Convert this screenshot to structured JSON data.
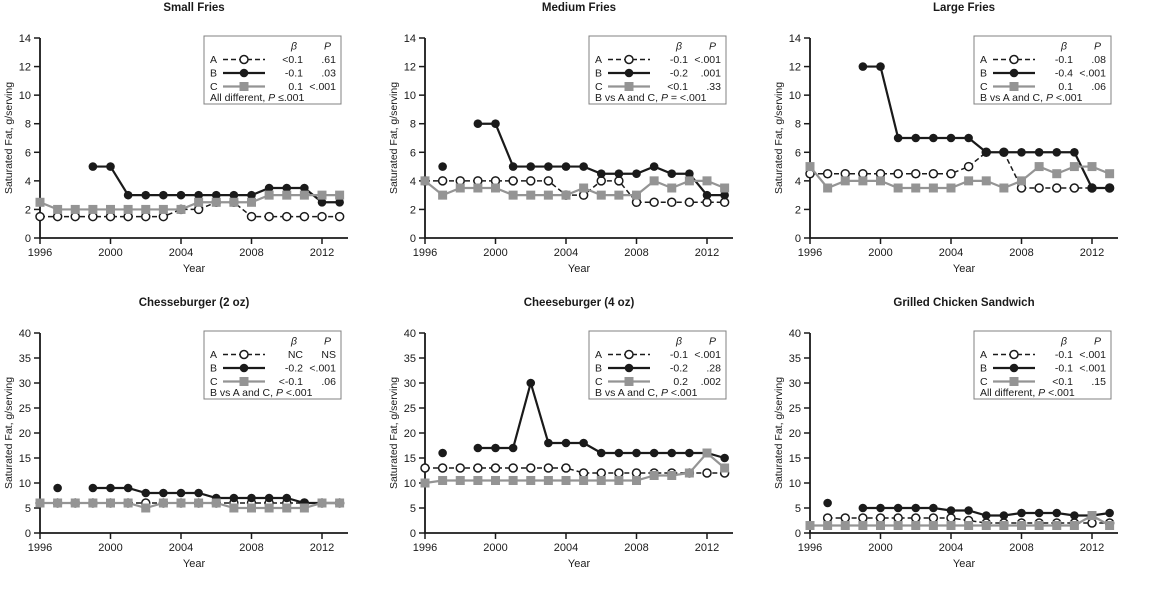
{
  "figure": {
    "xlabel": "Year",
    "ylabel": "Saturated Fat, g/serving",
    "xticks": [
      1996,
      2000,
      2004,
      2008,
      2012
    ],
    "xrange": [
      1996,
      2013.5
    ],
    "colors": {
      "black": "#1a1a1a",
      "gray": "#949494",
      "legend_border": "#808080",
      "background": "#ffffff"
    }
  },
  "chart_data": [
    {
      "type": "line",
      "title": "Small Fries",
      "xlabel": "Year",
      "ylabel": "Saturated Fat, g/serving",
      "ylim": [
        0,
        14
      ],
      "ystep": 2,
      "legend": {
        "col_beta": "β",
        "col_p": "P",
        "rows": [
          {
            "name": "A",
            "beta": "<0.1",
            "p": ".61"
          },
          {
            "name": "B",
            "beta": "-0.1",
            "p": ".03"
          },
          {
            "name": "C",
            "beta": "0.1",
            "p": "<.001"
          }
        ],
        "note": "All different, P ≤.001"
      },
      "series": [
        {
          "name": "A",
          "style": "dashed-open-circle",
          "x": [
            1996,
            1997,
            1998,
            1999,
            2000,
            2001,
            2002,
            2003,
            2004,
            2005,
            2006,
            2007,
            2008,
            2009,
            2010,
            2011,
            2012,
            2013
          ],
          "y": [
            1.5,
            1.5,
            1.5,
            1.5,
            1.5,
            1.5,
            1.5,
            1.5,
            2,
            2,
            2.5,
            2.5,
            1.5,
            1.5,
            1.5,
            1.5,
            1.5,
            1.5
          ]
        },
        {
          "name": "B",
          "style": "solid-filled-circle",
          "x": [
            1999,
            2000,
            2001,
            2002,
            2003,
            2004,
            2005,
            2006,
            2007,
            2008,
            2009,
            2010,
            2011,
            2012,
            2013
          ],
          "y": [
            5,
            5,
            3,
            3,
            3,
            3,
            3,
            3,
            3,
            3,
            3.5,
            3.5,
            3.5,
            2.5,
            2.5
          ]
        },
        {
          "name": "C",
          "style": "solid-gray-square",
          "x": [
            1996,
            1997,
            1998,
            1999,
            2000,
            2001,
            2002,
            2003,
            2004,
            2005,
            2006,
            2007,
            2008,
            2009,
            2010,
            2011,
            2012,
            2013
          ],
          "y": [
            2.5,
            2,
            2,
            2,
            2,
            2,
            2,
            2,
            2,
            2.5,
            2.5,
            2.5,
            2.5,
            3,
            3,
            3,
            3,
            3
          ]
        }
      ]
    },
    {
      "type": "line",
      "title": "Medium Fries",
      "xlabel": "Year",
      "ylabel": "Saturated Fat, g/serving",
      "ylim": [
        0,
        14
      ],
      "ystep": 2,
      "legend": {
        "col_beta": "β",
        "col_p": "P",
        "rows": [
          {
            "name": "A",
            "beta": "-0.1",
            "p": "<.001"
          },
          {
            "name": "B",
            "beta": "-0.2",
            "p": ".001"
          },
          {
            "name": "C",
            "beta": "<0.1",
            "p": ".33"
          }
        ],
        "note": "B vs A and C, P = <.001"
      },
      "series": [
        {
          "name": "A",
          "style": "dashed-open-circle",
          "x": [
            1996,
            1997,
            1998,
            1999,
            2000,
            2001,
            2002,
            2003,
            2004,
            2005,
            2006,
            2007,
            2008,
            2009,
            2010,
            2011,
            2012,
            2013
          ],
          "y": [
            4,
            4,
            4,
            4,
            4,
            4,
            4,
            4,
            3,
            3,
            4,
            4,
            2.5,
            2.5,
            2.5,
            2.5,
            2.5,
            2.5
          ]
        },
        {
          "name": "B",
          "style": "solid-filled-circle",
          "x": [
            1997,
            1999,
            2000,
            2001,
            2002,
            2003,
            2004,
            2005,
            2006,
            2007,
            2008,
            2009,
            2010,
            2011,
            2012,
            2013
          ],
          "y": [
            5,
            8,
            8,
            5,
            5,
            5,
            5,
            5,
            4.5,
            4.5,
            4.5,
            5,
            4.5,
            4.5,
            3,
            3
          ]
        },
        {
          "name": "C",
          "style": "solid-gray-square",
          "x": [
            1996,
            1997,
            1998,
            1999,
            2000,
            2001,
            2002,
            2003,
            2004,
            2005,
            2006,
            2007,
            2008,
            2009,
            2010,
            2011,
            2012,
            2013
          ],
          "y": [
            4,
            3,
            3.5,
            3.5,
            3.5,
            3,
            3,
            3,
            3,
            3.5,
            3,
            3,
            3,
            4,
            3.5,
            4,
            4,
            3.5
          ]
        }
      ]
    },
    {
      "type": "line",
      "title": "Large Fries",
      "xlabel": "Year",
      "ylabel": "Saturated Fat, g/serving",
      "ylim": [
        0,
        14
      ],
      "ystep": 2,
      "legend": {
        "col_beta": "β",
        "col_p": "P",
        "rows": [
          {
            "name": "A",
            "beta": "-0.1",
            "p": ".08"
          },
          {
            "name": "B",
            "beta": "-0.4",
            "p": "<.001"
          },
          {
            "name": "C",
            "beta": "0.1",
            "p": ".06"
          }
        ],
        "note": "B vs A and C, P <.001"
      },
      "series": [
        {
          "name": "A",
          "style": "dashed-open-circle",
          "x": [
            1996,
            1997,
            1998,
            1999,
            2000,
            2001,
            2002,
            2003,
            2004,
            2005,
            2006,
            2007,
            2008,
            2009,
            2010,
            2011,
            2012,
            2013
          ],
          "y": [
            4.5,
            4.5,
            4.5,
            4.5,
            4.5,
            4.5,
            4.5,
            4.5,
            4.5,
            5,
            6,
            6,
            3.5,
            3.5,
            3.5,
            3.5,
            3.5,
            3.5
          ]
        },
        {
          "name": "B",
          "style": "solid-filled-circle",
          "x": [
            1999,
            2000,
            2001,
            2002,
            2003,
            2004,
            2005,
            2006,
            2007,
            2008,
            2009,
            2010,
            2011,
            2012,
            2013
          ],
          "y": [
            12,
            12,
            7,
            7,
            7,
            7,
            7,
            6,
            6,
            6,
            6,
            6,
            6,
            3.5,
            3.5
          ]
        },
        {
          "name": "C",
          "style": "solid-gray-square",
          "x": [
            1996,
            1997,
            1998,
            1999,
            2000,
            2001,
            2002,
            2003,
            2004,
            2005,
            2006,
            2007,
            2008,
            2009,
            2010,
            2011,
            2012,
            2013
          ],
          "y": [
            5,
            3.5,
            4,
            4,
            4,
            3.5,
            3.5,
            3.5,
            3.5,
            4,
            4,
            3.5,
            4,
            5,
            4.5,
            5,
            5,
            4.5
          ]
        }
      ]
    },
    {
      "type": "line",
      "title": "Chesseburger (2 oz)",
      "xlabel": "Year",
      "ylabel": "Saturated Fat, g/serving",
      "ylim": [
        0,
        40
      ],
      "ystep": 5,
      "legend": {
        "col_beta": "β",
        "col_p": "P",
        "rows": [
          {
            "name": "A",
            "beta": "NC",
            "p": "NS"
          },
          {
            "name": "B",
            "beta": "-0.2",
            "p": "<.001"
          },
          {
            "name": "C",
            "beta": "<-0.1",
            "p": ".06"
          }
        ],
        "note": "B vs A and C, P <.001"
      },
      "series": [
        {
          "name": "A",
          "style": "dashed-open-circle",
          "x": [
            1996,
            1997,
            1998,
            1999,
            2000,
            2001,
            2002,
            2003,
            2004,
            2005,
            2006,
            2007,
            2008,
            2009,
            2010,
            2011,
            2012,
            2013
          ],
          "y": [
            6,
            6,
            6,
            6,
            6,
            6,
            6,
            6,
            6,
            6,
            6,
            6,
            6,
            6,
            6,
            6,
            6,
            6
          ]
        },
        {
          "name": "B",
          "style": "solid-filled-circle",
          "x": [
            1997,
            1999,
            2000,
            2001,
            2002,
            2003,
            2004,
            2005,
            2006,
            2007,
            2008,
            2009,
            2010,
            2011,
            2012,
            2013
          ],
          "y": [
            9,
            9,
            9,
            9,
            8,
            8,
            8,
            8,
            7,
            7,
            7,
            7,
            7,
            6,
            6,
            6
          ]
        },
        {
          "name": "C",
          "style": "solid-gray-square",
          "x": [
            1996,
            1997,
            1998,
            1999,
            2000,
            2001,
            2002,
            2003,
            2004,
            2005,
            2006,
            2007,
            2008,
            2009,
            2010,
            2011,
            2012,
            2013
          ],
          "y": [
            6,
            6,
            6,
            6,
            6,
            6,
            5,
            6,
            6,
            6,
            6,
            5,
            5,
            5,
            5,
            5,
            6,
            6
          ]
        }
      ]
    },
    {
      "type": "line",
      "title": "Cheeseburger (4 oz)",
      "xlabel": "Year",
      "ylabel": "Saturated Fat, g/serving",
      "ylim": [
        0,
        40
      ],
      "ystep": 5,
      "legend": {
        "col_beta": "β",
        "col_p": "P",
        "rows": [
          {
            "name": "A",
            "beta": "-0.1",
            "p": "<.001"
          },
          {
            "name": "B",
            "beta": "-0.2",
            "p": ".28"
          },
          {
            "name": "C",
            "beta": "0.2",
            "p": ".002"
          }
        ],
        "note": "B vs A and C, P <.001"
      },
      "series": [
        {
          "name": "A",
          "style": "dashed-open-circle",
          "x": [
            1996,
            1997,
            1998,
            1999,
            2000,
            2001,
            2002,
            2003,
            2004,
            2005,
            2006,
            2007,
            2008,
            2009,
            2010,
            2011,
            2012,
            2013
          ],
          "y": [
            13,
            13,
            13,
            13,
            13,
            13,
            13,
            13,
            13,
            12,
            12,
            12,
            12,
            12,
            12,
            12,
            12,
            12
          ]
        },
        {
          "name": "B",
          "style": "solid-filled-circle",
          "x": [
            1997,
            1999,
            2000,
            2001,
            2002,
            2003,
            2004,
            2005,
            2006,
            2007,
            2008,
            2009,
            2010,
            2011,
            2012,
            2013
          ],
          "y": [
            16,
            17,
            17,
            17,
            30,
            18,
            18,
            18,
            16,
            16,
            16,
            16,
            16,
            16,
            16,
            15
          ]
        },
        {
          "name": "C",
          "style": "solid-gray-square",
          "x": [
            1996,
            1997,
            1998,
            1999,
            2000,
            2001,
            2002,
            2003,
            2004,
            2005,
            2006,
            2007,
            2008,
            2009,
            2010,
            2011,
            2012,
            2013
          ],
          "y": [
            10,
            10.5,
            10.5,
            10.5,
            10.5,
            10.5,
            10.5,
            10.5,
            10.5,
            10.5,
            10.5,
            10.5,
            10.5,
            11.5,
            11.5,
            12,
            16,
            13
          ]
        }
      ]
    },
    {
      "type": "line",
      "title": "Grilled Chicken Sandwich",
      "xlabel": "Year",
      "ylabel": "Saturated Fat, g/serving",
      "ylim": [
        0,
        40
      ],
      "ystep": 5,
      "legend": {
        "col_beta": "β",
        "col_p": "P",
        "rows": [
          {
            "name": "A",
            "beta": "-0.1",
            "p": "<.001"
          },
          {
            "name": "B",
            "beta": "-0.1",
            "p": "<.001"
          },
          {
            "name": "C",
            "beta": "<0.1",
            "p": ".15"
          }
        ],
        "note": "All different, P <.001"
      },
      "series": [
        {
          "name": "A",
          "style": "dashed-open-circle",
          "x": [
            1997,
            1998,
            1999,
            2000,
            2001,
            2002,
            2003,
            2004,
            2005,
            2006,
            2007,
            2008,
            2009,
            2010,
            2011,
            2012,
            2013
          ],
          "y": [
            3,
            3,
            3,
            3,
            3,
            3,
            3,
            3,
            2.5,
            2,
            2,
            2,
            2,
            2,
            2,
            2,
            2
          ]
        },
        {
          "name": "B",
          "style": "solid-filled-circle",
          "x": [
            1997,
            1999,
            2000,
            2001,
            2002,
            2003,
            2004,
            2005,
            2006,
            2007,
            2008,
            2009,
            2010,
            2011,
            2012,
            2013
          ],
          "y": [
            6,
            5,
            5,
            5,
            5,
            5,
            4.5,
            4.5,
            3.5,
            3.5,
            4,
            4,
            4,
            3.5,
            3.5,
            4
          ]
        },
        {
          "name": "C",
          "style": "solid-gray-square",
          "x": [
            1996,
            1997,
            1998,
            1999,
            2000,
            2001,
            2002,
            2003,
            2004,
            2005,
            2006,
            2007,
            2008,
            2009,
            2010,
            2011,
            2012,
            2013
          ],
          "y": [
            1.5,
            1.5,
            1.5,
            1.5,
            1.5,
            1.5,
            1.5,
            1.5,
            1.5,
            1.5,
            1.5,
            1.5,
            1.5,
            1.5,
            1.5,
            1.5,
            3.5,
            1.5
          ]
        }
      ]
    }
  ]
}
